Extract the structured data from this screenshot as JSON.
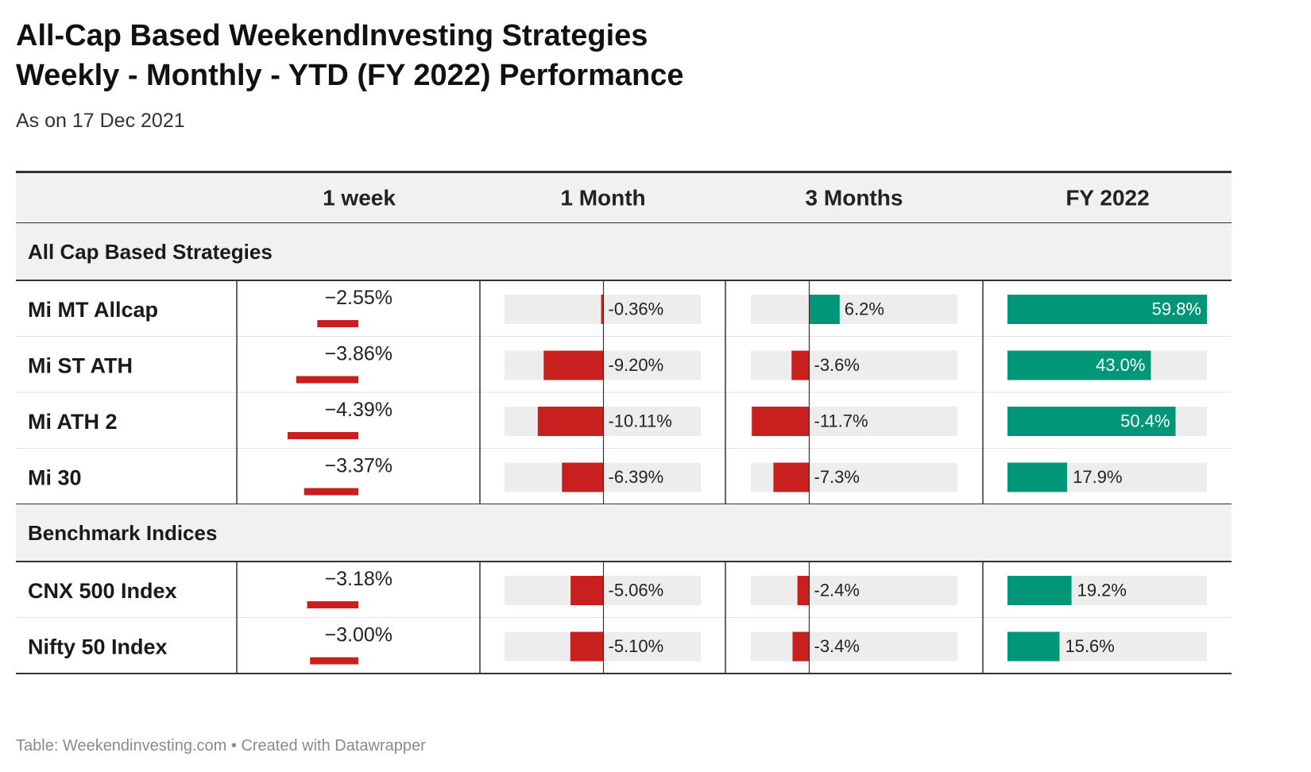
{
  "title_line1": "All-Cap Based WeekendInvesting Strategies",
  "title_line2": "Weekly - Monthly - YTD (FY 2022)  Performance",
  "subtitle": "As on 17 Dec 2021",
  "footer": "Table: Weekendinvesting.com • Created with Datawrapper",
  "colors": {
    "negative": "#c8201f",
    "positive": "#009677",
    "bar_background": "#ededed",
    "header_background": "#f1f1f1"
  },
  "chart_data": {
    "type": "table",
    "columns": [
      {
        "key": "week",
        "label": "1 week"
      },
      {
        "key": "month",
        "label": "1 Month"
      },
      {
        "key": "months3",
        "label": "3 Months"
      },
      {
        "key": "fy",
        "label": "FY 2022"
      }
    ],
    "groups": [
      {
        "name": "All Cap Based Strategies",
        "rows": [
          {
            "name": "Mi MT Allcap",
            "week": -2.55,
            "week_label": "−2.55%",
            "month": -0.36,
            "month_label": "-0.36%",
            "months3": 6.2,
            "months3_label": "6.2%",
            "fy": 59.8,
            "fy_label": "59.8%"
          },
          {
            "name": "Mi ST ATH",
            "week": -3.86,
            "week_label": "−3.86%",
            "month": -9.2,
            "month_label": "-9.20%",
            "months3": -3.6,
            "months3_label": "-3.6%",
            "fy": 43.0,
            "fy_label": "43.0%"
          },
          {
            "name": "Mi ATH 2",
            "week": -4.39,
            "week_label": "−4.39%",
            "month": -10.11,
            "month_label": "-10.11%",
            "months3": -11.7,
            "months3_label": "-11.7%",
            "fy": 50.4,
            "fy_label": "50.4%"
          },
          {
            "name": "Mi 30",
            "week": -3.37,
            "week_label": "−3.37%",
            "month": -6.39,
            "month_label": "-6.39%",
            "months3": -7.3,
            "months3_label": "-7.3%",
            "fy": 17.9,
            "fy_label": "17.9%"
          }
        ]
      },
      {
        "name": "Benchmark Indices",
        "rows": [
          {
            "name": "CNX 500 Index",
            "week": -3.18,
            "week_label": "−3.18%",
            "month": -5.06,
            "month_label": "-5.06%",
            "months3": -2.4,
            "months3_label": "-2.4%",
            "fy": 19.2,
            "fy_label": "19.2%"
          },
          {
            "name": "Nifty 50 Index",
            "week": -3.0,
            "week_label": "−3.00%",
            "month": -5.1,
            "month_label": "-5.10%",
            "months3": -3.4,
            "months3_label": "-3.4%",
            "fy": 15.6,
            "fy_label": "15.6%"
          }
        ]
      }
    ],
    "ranges": {
      "week": [
        -4.39,
        0
      ],
      "month": [
        -10.11,
        20.1
      ],
      "months3": [
        -11.7,
        30.4
      ],
      "fy": [
        0,
        59.8
      ]
    }
  }
}
